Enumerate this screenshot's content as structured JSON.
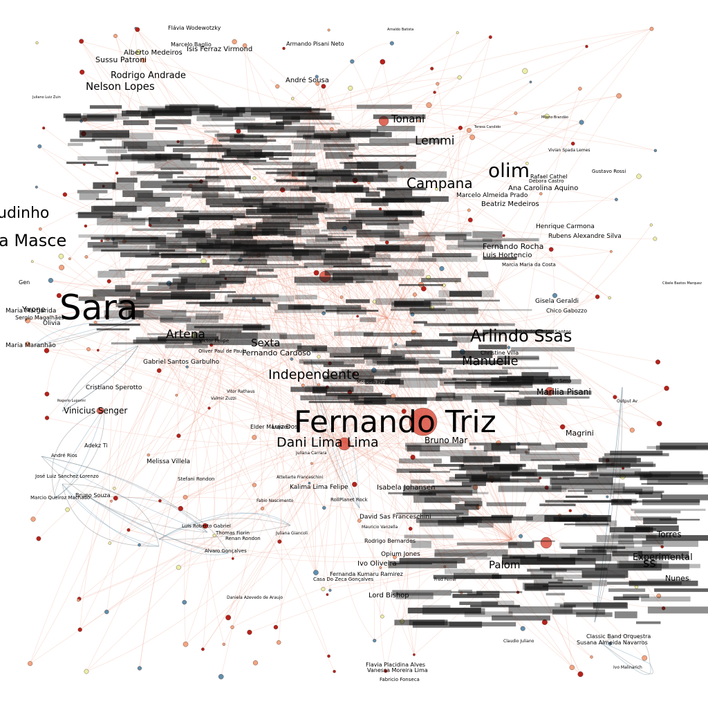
{
  "colors": {
    "background": "#ffffff",
    "hub": "#d9503f",
    "warm": "#f2a582",
    "red": "#b5221c",
    "cool": "#5f8fae",
    "pale": "#eaf0a8",
    "edge_warm": "#e8957a",
    "edge_cool": "#6f98b3"
  },
  "labels": {
    "fernando_triz": "Fernando Triz",
    "dani_lima": "Dani Lima Lima",
    "vinicius_senger": "Vinicius Senger",
    "cristiano_sperotto": "Cristiano Sperotto",
    "gabriel_garbulho": "Gabriel Santos Garbulho",
    "melissa_villela": "Melissa Villela",
    "stefani_rondon": "Stefani Rondon",
    "adekz_ti": "Adekz Ti",
    "andre_rios": "André Rios",
    "jose_luiz": "José Luiz Sanchez Lorenzo",
    "bruno_souza": "Bruno Souza",
    "marcio_queiroz": "Marcio Queiroz Machado",
    "luis_roberto": "Luis Roberto Gabriel",
    "thomas_fiorin": "Thomas Fiorin",
    "renan_rondon": "Renan Rondon",
    "alvaro": "Alvaro Gonçalves",
    "juliana_giancoli": "Juliana Giancoli",
    "vitor_rathaus": "Vitor Rathaus",
    "valmir_zuzzi": "Valmir Zuzzi",
    "luiz_dos": "Luiz Dos",
    "elder": "Elder Marques",
    "juliana_carrara": "Juliana Carrara",
    "fabio_nascimento": "Fabio Nascimento",
    "atteliarte": "Atteliarte Franceschini",
    "kalima": "Kalima Lima Felipe",
    "rollplanet": "RollPlanet Rock",
    "isabela": "Isabela Johansen",
    "david": "David Sas Franceschini",
    "rodrigo_b": "Rodrigo Bernardes",
    "opium": "Opium Jones",
    "ivo_oliveira": "Ivo Oliveira",
    "fernanda_k": "Fernanda Kumaru Ramirez",
    "casa_do_zeca": "Casa Do Zeca Gonçalves",
    "lord_bishop": "Lord Bishop",
    "daniela": "Daniela Azevedo de Araujo",
    "fabricio": "Fabricio Fonseca",
    "flavia_alves": "Flavia Placidina Alves",
    "vanessa": "Vanessa Moreira Lima",
    "ivo_malinarich": "Ivo Malinarich",
    "susana": "Susana Almeida Navarros",
    "classic": "Classic Band Orquestra",
    "claudio": "Claudio Juliano",
    "marilia": "Marilia Pisani",
    "tiago": "Tiago Sena",
    "output": "Output Av",
    "magrini": "Magrini",
    "bruno_mar": "Bruno Mar",
    "chico": "Chico Gabozzo",
    "gisela": "Gisela Geraldi",
    "rubens": "Rubens Alexandre Silva",
    "henrique": "Henrique Carmona",
    "ana_carolina": "Ana Carolina Aquino",
    "beatriz": "Beatriz Medeiros",
    "marcelo_prado": "Marcelo Almeida Prado",
    "gustavo_rossi": "Gustavo Rossi",
    "rafael_c": "Rafael Cathel",
    "debora": "Débora Castro",
    "vivian": "Vivian Spada Lemes",
    "teresa": "Teresa Candido",
    "mileno": "Mileno Brandão",
    "cibele": "Cibele Bastos Marquez",
    "flavia_w": "Flávia Wodewotzky",
    "isis": "Isis Ferraz Virmond",
    "alberto": "Alberto Medeiros",
    "marcelo_baglio": "Marcelo Baglio",
    "armando": "Armando Pisani Neto",
    "sussu": "Sussu Patroni",
    "rodrigo_a": "Rodrigo Andrade",
    "nelson": "Nelson Lopes",
    "andre_sousa": "André Sousa",
    "tonani": "Tonani",
    "juliano": "Juliano Luiz Zuin",
    "rogerio": "Rogerio Luporini",
    "lemmi": "Lemmi",
    "campana": "Campana",
    "olim": "olim",
    "a_masce": "a Masce",
    "udinho": "udinho",
    "sara": "Sara",
    "arlindo": "Arlindo Ssas",
    "manuelle": "Manuelle",
    "independe": "Independente",
    "fernando_rocha": "Fernando Rocha",
    "luis_h": "Luis Hortencio",
    "marcia": "Marcia Maria da Costa",
    "eduardo_santos": "Eduardo Santos Santos",
    "christine": "Christine Villa",
    "marcelo_p": "Marcelo Pizza",
    "fernando_cardoso": "Fernando Cardoso",
    "oliver": "Oliver Paul de Paula",
    "victor": "Victor Felipe",
    "olivia": "Olivia",
    "sergio": "Sergio Magalhães",
    "gen": "Gen",
    "yvone": "Yvone",
    "maria": "Maria Maranhão",
    "maria_m": "Maria Margarida",
    "sexta": "Sexta",
    "artena": "Artena",
    "experimental": "Experimental",
    "nunes": "Nunes",
    "palom": "Palom",
    "ss": "ss",
    "torres": "Torres",
    "mauricio": "Mauricio Vanzella",
    "fred": "Fred Ferrer",
    "arnaldo": "Arnaldo Batista"
  }
}
